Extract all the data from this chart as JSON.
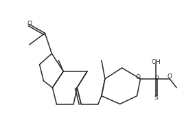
{
  "bg_color": "#ffffff",
  "line_color": "#2a2a2a",
  "line_width": 1.1,
  "fig_width": 2.68,
  "fig_height": 1.85,
  "dpi": 100,
  "xlim": [
    0,
    10
  ],
  "ylim": [
    0,
    6.9
  ]
}
